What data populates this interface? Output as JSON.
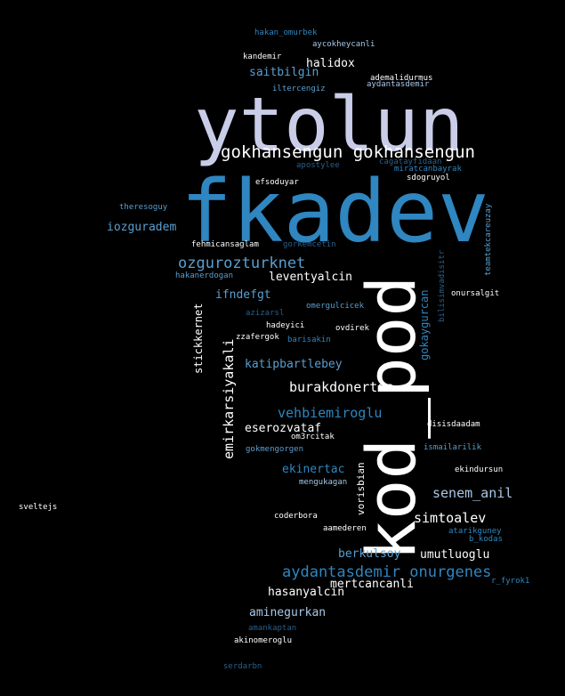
{
  "palette": {
    "background": "#000000",
    "white": "#ffffff",
    "lavender": "#c9cde8",
    "light_blue": "#a8c8e8",
    "mid_blue": "#5a9fd0",
    "blue": "#2f86c0",
    "dark_blue": "#2a5f8c",
    "gray_blue": "#3a5a7a"
  },
  "words": [
    {
      "text": "ytolun"
    },
    {
      "text": "fkadev"
    },
    {
      "text": "kod_pod"
    },
    {
      "text": "gokhansengun gokhansengun"
    },
    {
      "text": "ozgurozturknet"
    },
    {
      "text": "aydantasdemir onurgenes"
    },
    {
      "text": "burakdonertas"
    },
    {
      "text": "vehbiemiroglu"
    },
    {
      "text": "senem_anil"
    },
    {
      "text": "simtoalev"
    },
    {
      "text": "emirkarsiyakali"
    },
    {
      "text": "halidox"
    },
    {
      "text": "saitbilgin"
    },
    {
      "text": "iozguradem"
    },
    {
      "text": "leventyalcin"
    },
    {
      "text": "ifndefgt"
    },
    {
      "text": "katipbartlebey"
    },
    {
      "text": "eserozvataf"
    },
    {
      "text": "ekinertac"
    },
    {
      "text": "berkulsoy"
    },
    {
      "text": "umutluoglu"
    },
    {
      "text": "mertcancanli"
    },
    {
      "text": "hasanyalcin"
    },
    {
      "text": "aminegurkan"
    },
    {
      "text": "stickkernet"
    },
    {
      "text": "gokaygurcan"
    },
    {
      "text": "vorisbian"
    },
    {
      "text": "hakan_omurbek"
    },
    {
      "text": "aycokheycanli"
    },
    {
      "text": "kandemir"
    },
    {
      "text": "ademalidurmus"
    },
    {
      "text": "aydantasdemir"
    },
    {
      "text": "iltercengiz"
    },
    {
      "text": "cagatayfidaan"
    },
    {
      "text": "apostylee"
    },
    {
      "text": "miratcanbayrak"
    },
    {
      "text": "efsoduyar"
    },
    {
      "text": "sdogruyol"
    },
    {
      "text": "theresoguy"
    },
    {
      "text": "fehmicansaglam"
    },
    {
      "text": "gorkemcetin"
    },
    {
      "text": "hakanerdogan"
    },
    {
      "text": "teamtekcareuzay"
    },
    {
      "text": "bilisimvadisitr"
    },
    {
      "text": "onursalgit"
    },
    {
      "text": "omergulcicek"
    },
    {
      "text": "azizarsl"
    },
    {
      "text": "hadeyici"
    },
    {
      "text": "ovdirek"
    },
    {
      "text": "zzafergok"
    },
    {
      "text": "barisakin"
    },
    {
      "text": "disisdaadam"
    },
    {
      "text": "om3rcitak"
    },
    {
      "text": "ismailarilik"
    },
    {
      "text": "gokmengorgen"
    },
    {
      "text": "ekindursun"
    },
    {
      "text": "mengukagan"
    },
    {
      "text": "sveltejs"
    },
    {
      "text": "coderbora"
    },
    {
      "text": "atarikguney"
    },
    {
      "text": "aamederen"
    },
    {
      "text": "b_kodas"
    },
    {
      "text": "r_fyrok1"
    },
    {
      "text": "amankaptan"
    },
    {
      "text": "akinomeroglu"
    },
    {
      "text": "serdarbn"
    }
  ]
}
